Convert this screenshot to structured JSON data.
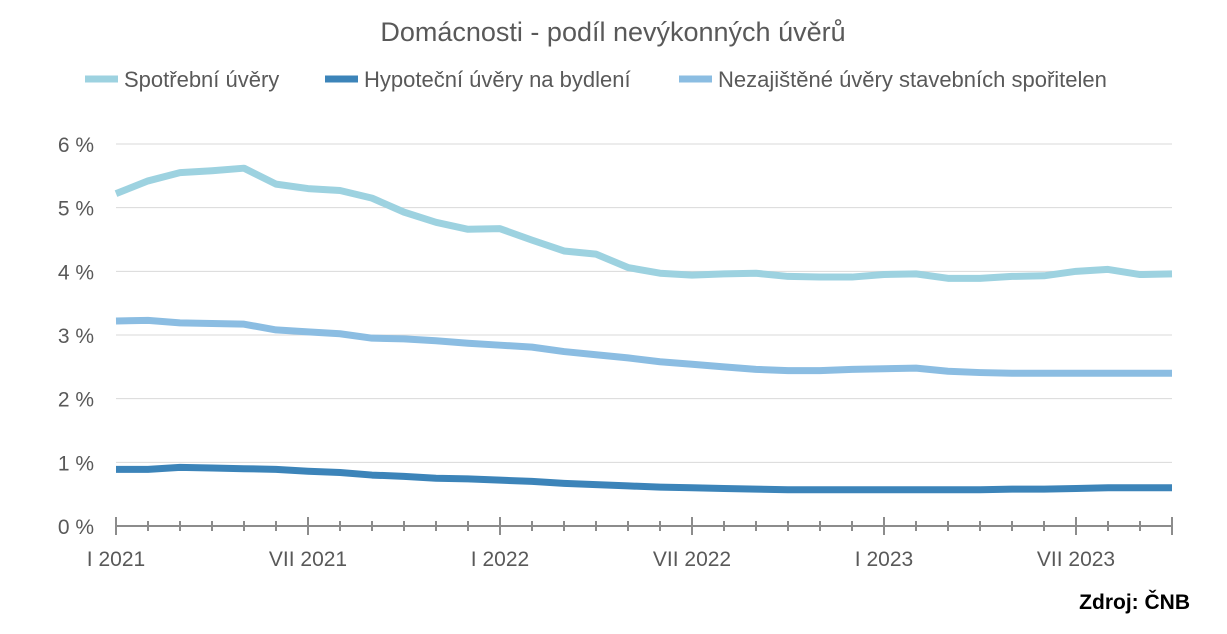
{
  "chart_data": {
    "type": "line",
    "title": "Domácnosti - podíl nevýkonných úvěrů",
    "source": "Zdroj: ČNB",
    "legend_position": "top",
    "grid": true,
    "ylim": [
      0,
      6
    ],
    "y_ticks": [
      {
        "value": 0,
        "label": "0 %"
      },
      {
        "value": 1,
        "label": "1 %"
      },
      {
        "value": 2,
        "label": "2 %"
      },
      {
        "value": 3,
        "label": "3 %"
      },
      {
        "value": 4,
        "label": "4 %"
      },
      {
        "value": 5,
        "label": "5 %"
      },
      {
        "value": 6,
        "label": "6 %"
      }
    ],
    "x": [
      "I 2021",
      "II 2021",
      "III 2021",
      "IV 2021",
      "V 2021",
      "VI 2021",
      "VII 2021",
      "VIII 2021",
      "IX 2021",
      "X 2021",
      "XI 2021",
      "XII 2021",
      "I 2022",
      "II 2022",
      "III 2022",
      "IV 2022",
      "V 2022",
      "VI 2022",
      "VII 2022",
      "VIII 2022",
      "IX 2022",
      "X 2022",
      "XI 2022",
      "XII 2022",
      "I 2023",
      "II 2023",
      "III 2023",
      "IV 2023",
      "V 2023",
      "VI 2023",
      "VII 2023",
      "VIII 2023",
      "IX 2023",
      "X 2023"
    ],
    "x_tick_labels": [
      {
        "index": 0,
        "label": "I 2021"
      },
      {
        "index": 6,
        "label": "VII 2021"
      },
      {
        "index": 12,
        "label": "I 2022"
      },
      {
        "index": 18,
        "label": "VII 2022"
      },
      {
        "index": 24,
        "label": "I 2023"
      },
      {
        "index": 30,
        "label": "VII 2023"
      }
    ],
    "series": [
      {
        "name": "Spotřební úvěry",
        "color": "#9dd2e0",
        "values": [
          5.22,
          5.42,
          5.55,
          5.58,
          5.62,
          5.37,
          5.3,
          5.27,
          5.15,
          4.93,
          4.77,
          4.66,
          4.67,
          4.49,
          4.32,
          4.27,
          4.06,
          3.97,
          3.94,
          3.96,
          3.97,
          3.92,
          3.91,
          3.91,
          3.95,
          3.96,
          3.89,
          3.89,
          3.92,
          3.93,
          4.0,
          4.03,
          3.95,
          3.96
        ]
      },
      {
        "name": "Hypoteční úvěry na bydlení",
        "color": "#3c84b9",
        "values": [
          0.89,
          0.89,
          0.92,
          0.91,
          0.9,
          0.89,
          0.86,
          0.84,
          0.8,
          0.78,
          0.75,
          0.74,
          0.72,
          0.7,
          0.67,
          0.65,
          0.63,
          0.61,
          0.6,
          0.59,
          0.58,
          0.57,
          0.57,
          0.57,
          0.57,
          0.57,
          0.57,
          0.57,
          0.58,
          0.58,
          0.59,
          0.6,
          0.6,
          0.6
        ]
      },
      {
        "name": "Nezajištěné úvěry stavebních spořitelen",
        "color": "#8bbde2",
        "values": [
          3.22,
          3.23,
          3.19,
          3.18,
          3.17,
          3.08,
          3.05,
          3.02,
          2.95,
          2.94,
          2.91,
          2.87,
          2.84,
          2.81,
          2.74,
          2.69,
          2.64,
          2.58,
          2.54,
          2.5,
          2.46,
          2.44,
          2.44,
          2.46,
          2.47,
          2.48,
          2.43,
          2.41,
          2.4,
          2.4,
          2.4,
          2.4,
          2.4,
          2.4
        ]
      }
    ]
  }
}
